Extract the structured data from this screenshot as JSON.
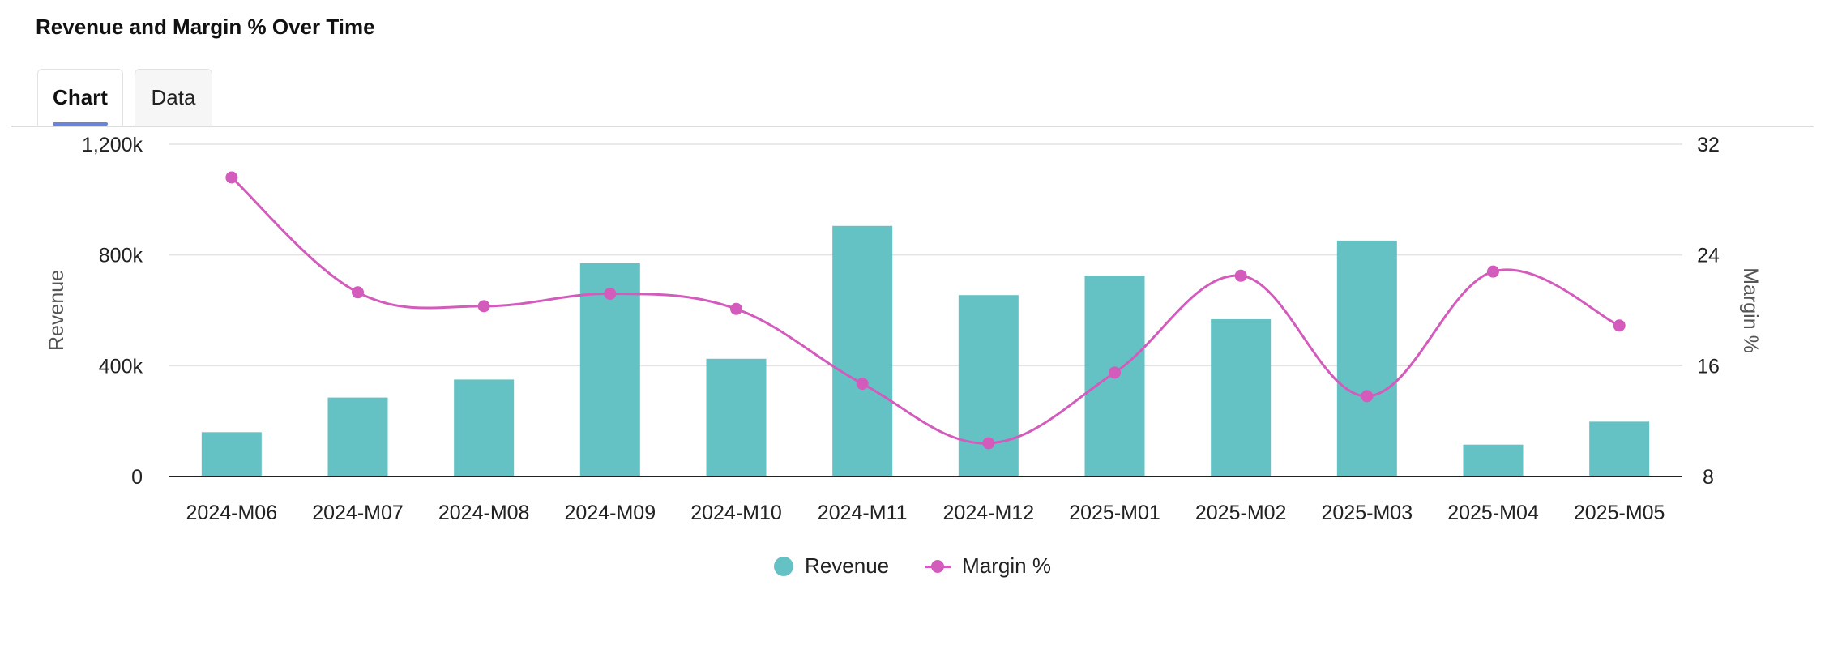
{
  "title": "Revenue and Margin % Over Time",
  "tabs": [
    {
      "label": "Chart",
      "active": true
    },
    {
      "label": "Data",
      "active": false
    }
  ],
  "colors": {
    "revenue": "#64c2c4",
    "margin": "#d35bbb",
    "grid": "#e3e3e3",
    "axis": "#222222",
    "tab_indicator": "#6a84d6"
  },
  "chart_data": {
    "type": "bar",
    "categories": [
      "2024-M06",
      "2024-M07",
      "2024-M08",
      "2024-M09",
      "2024-M10",
      "2024-M11",
      "2024-M12",
      "2025-M01",
      "2025-M02",
      "2025-M03",
      "2025-M04",
      "2025-M05"
    ],
    "series": [
      {
        "name": "Revenue",
        "type": "bar",
        "axis": "left",
        "values": [
          160000,
          285000,
          350000,
          770000,
          425000,
          905000,
          655000,
          725000,
          568000,
          852000,
          115000,
          198000
        ]
      },
      {
        "name": "Margin %",
        "type": "line",
        "axis": "right",
        "smooth": true,
        "values": [
          29.6,
          21.3,
          20.3,
          21.2,
          20.1,
          14.7,
          10.4,
          15.5,
          22.5,
          13.8,
          22.8,
          18.9
        ]
      }
    ],
    "ylabel": "Revenue",
    "y2label": "Margin %",
    "ylim": [
      0,
      1200000
    ],
    "y2lim": [
      8,
      32
    ],
    "yticks": [
      "0",
      "400k",
      "800k",
      "1,200k"
    ],
    "y2ticks": [
      "8",
      "16",
      "24",
      "32"
    ],
    "grid": true,
    "legend": "bottom-center"
  }
}
